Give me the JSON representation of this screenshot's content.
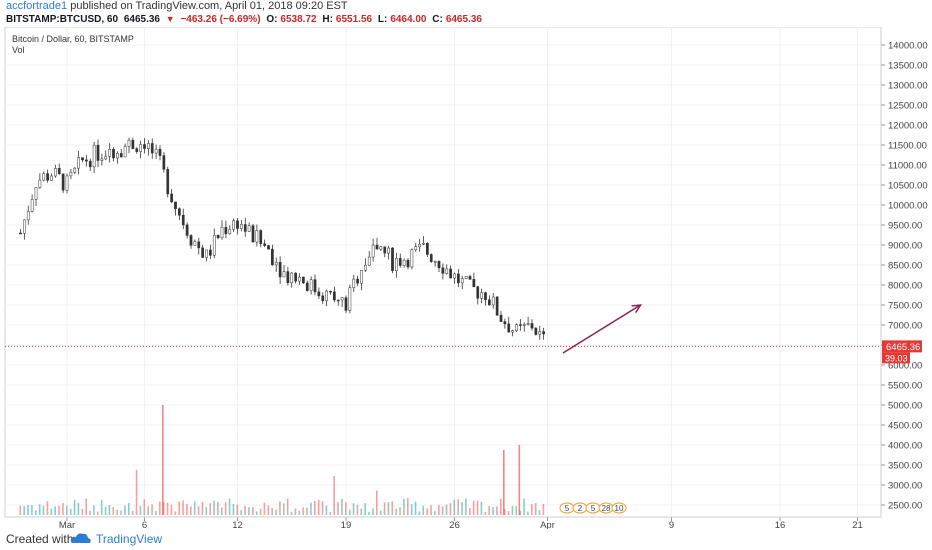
{
  "header": {
    "username": "accfortrade1",
    "published": "published on TradingView.com, April 01, 2018 09:20 EST",
    "symbol": "BITSTAMP:BTCUSD, 60",
    "last": "6465.36",
    "change": "−463.26 (−6.69%)",
    "open_label": "O:",
    "open": "6538.72",
    "high_label": "H:",
    "high": "6551.56",
    "low_label": "L:",
    "low": "6464.00",
    "close_label": "C:",
    "close": "6465.36"
  },
  "legend": {
    "main": "Bitcoin / Dollar, 60, BITSTAMP",
    "vol": "Vol"
  },
  "footer": {
    "created": "Created with",
    "brand": "TradingView"
  },
  "colors": {
    "up": "#26a69a",
    "down": "#ef5350",
    "candle": "#333333",
    "arrow": "#8b2252",
    "price_line": "#e53935",
    "link": "#2f7bd2"
  },
  "chart_data": {
    "type": "candlestick",
    "title": "Bitcoin / Dollar, 60, BITSTAMP",
    "x_ticks": [
      "Mar",
      "6",
      "12",
      "19",
      "26",
      "Apr",
      "9",
      "16",
      "21"
    ],
    "y_ticks": [
      "14000.00",
      "13500.00",
      "13000.00",
      "12500.00",
      "12000.00",
      "11500.00",
      "11000.00",
      "10500.00",
      "10000.00",
      "9500.00",
      "9000.00",
      "8500.00",
      "8000.00",
      "7500.00",
      "7000.00",
      "6500.00",
      "6000.00",
      "5500.00",
      "5000.00",
      "4500.00",
      "4000.00",
      "3500.00",
      "3000.00",
      "2500.00"
    ],
    "ylim": [
      2500,
      14000
    ],
    "grid": true,
    "last_price_label": "6465.36",
    "volume_label": "39.03",
    "approx_path": [
      {
        "date": "Feb 26",
        "price": 9300
      },
      {
        "date": "Feb 27",
        "price": 10600
      },
      {
        "date": "Feb 28",
        "price": 10800
      },
      {
        "date": "Mar 1",
        "price": 10500
      },
      {
        "date": "Mar 2",
        "price": 11100
      },
      {
        "date": "Mar 3",
        "price": 11300
      },
      {
        "date": "Mar 4",
        "price": 11400
      },
      {
        "date": "Mar 5",
        "price": 11500
      },
      {
        "date": "Mar 6",
        "price": 11600
      },
      {
        "date": "Mar 7",
        "price": 11000
      },
      {
        "date": "Mar 8",
        "price": 10000
      },
      {
        "date": "Mar 9",
        "price": 9200
      },
      {
        "date": "Mar 10",
        "price": 8700
      },
      {
        "date": "Mar 11",
        "price": 9400
      },
      {
        "date": "Mar 12",
        "price": 9600
      },
      {
        "date": "Mar 13",
        "price": 9200
      },
      {
        "date": "Mar 14",
        "price": 8900
      },
      {
        "date": "Mar 15",
        "price": 8300
      },
      {
        "date": "Mar 16",
        "price": 8200
      },
      {
        "date": "Mar 17",
        "price": 7900
      },
      {
        "date": "Mar 18",
        "price": 7700
      },
      {
        "date": "Mar 19",
        "price": 7500
      },
      {
        "date": "Mar 20",
        "price": 8500
      },
      {
        "date": "Mar 21",
        "price": 9000
      },
      {
        "date": "Mar 22",
        "price": 8600
      },
      {
        "date": "Mar 23",
        "price": 8700
      },
      {
        "date": "Mar 24",
        "price": 8900
      },
      {
        "date": "Mar 25",
        "price": 8600
      },
      {
        "date": "Mar 26",
        "price": 8200
      },
      {
        "date": "Mar 27",
        "price": 7900
      },
      {
        "date": "Mar 28",
        "price": 7800
      },
      {
        "date": "Mar 29",
        "price": 7200
      },
      {
        "date": "Mar 30",
        "price": 6800
      },
      {
        "date": "Mar 31",
        "price": 7000
      },
      {
        "date": "Apr 1",
        "price": 6465
      }
    ],
    "arrow": {
      "from": {
        "date": "Apr 2",
        "price": 6300
      },
      "to": {
        "date": "Apr 7",
        "price": 7500
      }
    },
    "volume_axis_ticks": [
      "5",
      "2",
      "5",
      "28",
      "10"
    ]
  }
}
